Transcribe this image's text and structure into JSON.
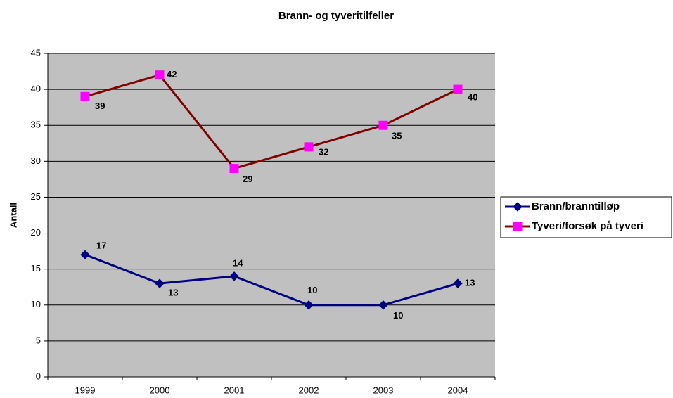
{
  "chart_data": {
    "type": "line",
    "title": "Brann- og tyveritilfeller",
    "y_label": "Antall",
    "categories": [
      "1999",
      "2000",
      "2001",
      "2002",
      "2003",
      "2004"
    ],
    "series": [
      {
        "name": "Brann/branntilløp",
        "color": "#000080",
        "marker_color": "#000080",
        "marker": "diamond",
        "values": [
          17,
          13,
          14,
          10,
          10,
          13
        ]
      },
      {
        "name": "Tyveri/forsøk på tyveri",
        "color": "#800000",
        "marker_color": "#ff00ff",
        "marker": "square",
        "values": [
          39,
          42,
          29,
          32,
          35,
          40
        ]
      }
    ],
    "ylim": [
      0,
      45
    ],
    "yticks": [
      0,
      5,
      10,
      15,
      20,
      25,
      30,
      35,
      40,
      45
    ],
    "grid": true,
    "legend": "right",
    "plot_background": "#c0c0c0"
  }
}
